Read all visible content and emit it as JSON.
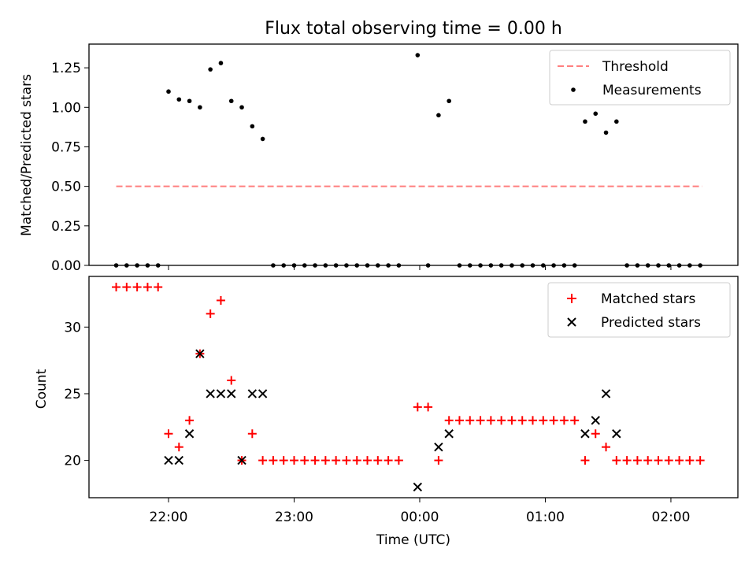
{
  "chart_data": [
    {
      "type": "scatter",
      "title": "Flux total observing time = 0.00 h",
      "ylabel": "Matched/Predicted stars",
      "xlabel": "",
      "ylim": [
        0,
        1.4
      ],
      "yticks": [
        0.0,
        0.25,
        0.5,
        0.75,
        1.0,
        1.25
      ],
      "ytick_labels": [
        "0.00",
        "0.25",
        "0.50",
        "0.75",
        "1.00",
        "1.25"
      ],
      "x_range": [
        "21:22",
        "02:32"
      ],
      "grid": false,
      "legend": "top-right",
      "threshold": {
        "name": "Threshold",
        "value": 0.5,
        "x_start": "21:35",
        "x_end": "02:15",
        "color": "#ff7f7f"
      },
      "series": [
        {
          "name": "Measurements",
          "color": "#000000",
          "points": [
            [
              "21:35",
              0.0
            ],
            [
              "21:40",
              0.0
            ],
            [
              "21:45",
              0.0
            ],
            [
              "21:50",
              0.0
            ],
            [
              "21:55",
              0.0
            ],
            [
              "22:00",
              1.1
            ],
            [
              "22:05",
              1.05
            ],
            [
              "22:10",
              1.04
            ],
            [
              "22:15",
              1.0
            ],
            [
              "22:20",
              1.24
            ],
            [
              "22:25",
              1.28
            ],
            [
              "22:30",
              1.04
            ],
            [
              "22:35",
              1.0
            ],
            [
              "22:40",
              0.88
            ],
            [
              "22:45",
              0.8
            ],
            [
              "22:50",
              0.0
            ],
            [
              "22:55",
              0.0
            ],
            [
              "23:00",
              0.0
            ],
            [
              "23:05",
              0.0
            ],
            [
              "23:10",
              0.0
            ],
            [
              "23:15",
              0.0
            ],
            [
              "23:20",
              0.0
            ],
            [
              "23:25",
              0.0
            ],
            [
              "23:30",
              0.0
            ],
            [
              "23:35",
              0.0
            ],
            [
              "23:40",
              0.0
            ],
            [
              "23:45",
              0.0
            ],
            [
              "23:50",
              0.0
            ],
            [
              "23:59",
              1.33
            ],
            [
              "00:04",
              0.0
            ],
            [
              "00:09",
              0.95
            ],
            [
              "00:14",
              1.04
            ],
            [
              "00:19",
              0.0
            ],
            [
              "00:24",
              0.0
            ],
            [
              "00:29",
              0.0
            ],
            [
              "00:34",
              0.0
            ],
            [
              "00:39",
              0.0
            ],
            [
              "00:44",
              0.0
            ],
            [
              "00:49",
              0.0
            ],
            [
              "00:54",
              0.0
            ],
            [
              "00:59",
              0.0
            ],
            [
              "01:04",
              0.0
            ],
            [
              "01:09",
              0.0
            ],
            [
              "01:14",
              0.0
            ],
            [
              "01:19",
              0.91
            ],
            [
              "01:24",
              0.96
            ],
            [
              "01:29",
              0.84
            ],
            [
              "01:34",
              0.91
            ],
            [
              "01:39",
              0.0
            ],
            [
              "01:44",
              0.0
            ],
            [
              "01:49",
              0.0
            ],
            [
              "01:54",
              0.0
            ],
            [
              "01:59",
              0.0
            ],
            [
              "02:04",
              0.0
            ],
            [
              "02:09",
              0.0
            ],
            [
              "02:14",
              0.0
            ]
          ]
        }
      ]
    },
    {
      "type": "scatter",
      "title": "",
      "ylabel": "Count",
      "xlabel": "Time (UTC)",
      "ylim": [
        17.2,
        33.8
      ],
      "yticks": [
        20,
        25,
        30
      ],
      "ytick_labels": [
        "20",
        "25",
        "30"
      ],
      "xticks": [
        "22:00",
        "23:00",
        "00:00",
        "01:00",
        "02:00"
      ],
      "x_range": [
        "21:22",
        "02:32"
      ],
      "grid": false,
      "legend": "top-right",
      "series": [
        {
          "name": "Matched stars",
          "marker": "plus",
          "color": "#ff0000",
          "points": [
            [
              "21:35",
              33
            ],
            [
              "21:40",
              33
            ],
            [
              "21:45",
              33
            ],
            [
              "21:50",
              33
            ],
            [
              "21:55",
              33
            ],
            [
              "22:00",
              22
            ],
            [
              "22:05",
              21
            ],
            [
              "22:10",
              23
            ],
            [
              "22:15",
              28
            ],
            [
              "22:20",
              31
            ],
            [
              "22:25",
              32
            ],
            [
              "22:30",
              26
            ],
            [
              "22:35",
              20
            ],
            [
              "22:40",
              22
            ],
            [
              "22:45",
              20
            ],
            [
              "22:50",
              20
            ],
            [
              "22:55",
              20
            ],
            [
              "23:00",
              20
            ],
            [
              "23:05",
              20
            ],
            [
              "23:10",
              20
            ],
            [
              "23:15",
              20
            ],
            [
              "23:20",
              20
            ],
            [
              "23:25",
              20
            ],
            [
              "23:30",
              20
            ],
            [
              "23:35",
              20
            ],
            [
              "23:40",
              20
            ],
            [
              "23:45",
              20
            ],
            [
              "23:50",
              20
            ],
            [
              "23:59",
              24
            ],
            [
              "00:04",
              24
            ],
            [
              "00:09",
              20
            ],
            [
              "00:14",
              23
            ],
            [
              "00:19",
              23
            ],
            [
              "00:24",
              23
            ],
            [
              "00:29",
              23
            ],
            [
              "00:34",
              23
            ],
            [
              "00:39",
              23
            ],
            [
              "00:44",
              23
            ],
            [
              "00:49",
              23
            ],
            [
              "00:54",
              23
            ],
            [
              "00:59",
              23
            ],
            [
              "01:04",
              23
            ],
            [
              "01:09",
              23
            ],
            [
              "01:14",
              23
            ],
            [
              "01:19",
              20
            ],
            [
              "01:24",
              22
            ],
            [
              "01:29",
              21
            ],
            [
              "01:34",
              20
            ],
            [
              "01:39",
              20
            ],
            [
              "01:44",
              20
            ],
            [
              "01:49",
              20
            ],
            [
              "01:54",
              20
            ],
            [
              "01:59",
              20
            ],
            [
              "02:04",
              20
            ],
            [
              "02:09",
              20
            ],
            [
              "02:14",
              20
            ]
          ]
        },
        {
          "name": "Predicted stars",
          "marker": "x",
          "color": "#000000",
          "points": [
            [
              "22:00",
              20
            ],
            [
              "22:05",
              20
            ],
            [
              "22:10",
              22
            ],
            [
              "22:15",
              28
            ],
            [
              "22:20",
              25
            ],
            [
              "22:25",
              25
            ],
            [
              "22:30",
              25
            ],
            [
              "22:35",
              20
            ],
            [
              "22:40",
              25
            ],
            [
              "22:45",
              25
            ],
            [
              "23:59",
              18
            ],
            [
              "00:09",
              21
            ],
            [
              "00:14",
              22
            ],
            [
              "01:19",
              22
            ],
            [
              "01:24",
              23
            ],
            [
              "01:29",
              25
            ],
            [
              "01:34",
              22
            ]
          ]
        }
      ]
    }
  ]
}
